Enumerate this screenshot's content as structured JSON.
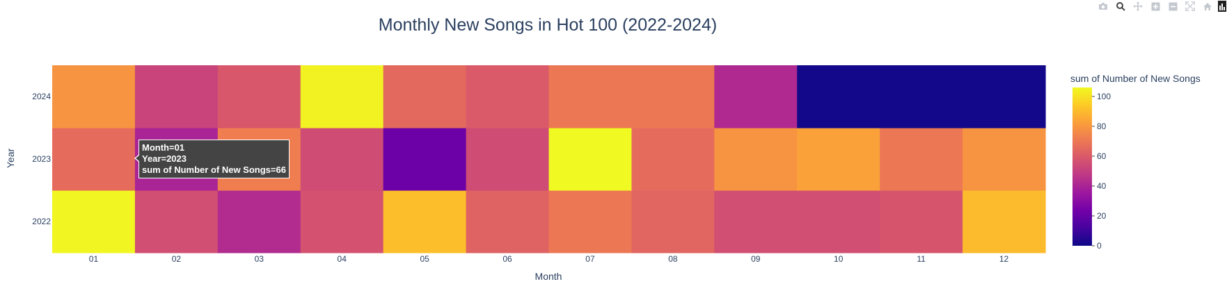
{
  "modebar": {
    "icons": [
      "camera-icon",
      "zoom-icon",
      "pan-icon",
      "zoom-in-icon",
      "zoom-out-icon",
      "autoscale-icon",
      "home-icon",
      "plotly-logo-icon"
    ]
  },
  "chart_data": {
    "type": "heatmap",
    "title": "Monthly New Songs in Hot 100 (2022-2024)",
    "xlabel": "Month",
    "ylabel": "Year",
    "x": [
      "01",
      "02",
      "03",
      "04",
      "05",
      "06",
      "07",
      "08",
      "09",
      "10",
      "11",
      "12"
    ],
    "y": [
      "2022",
      "2023",
      "2024"
    ],
    "z": [
      [
        105,
        56,
        43,
        57,
        91,
        63,
        70,
        64,
        56,
        56,
        58,
        90
      ],
      [
        66,
        40,
        72,
        55,
        22,
        55,
        106,
        66,
        79,
        83,
        70,
        79
      ],
      [
        79,
        52,
        59,
        104,
        65,
        60,
        70,
        70,
        42,
        1,
        1,
        1
      ]
    ],
    "colorbar": {
      "title": "sum of Number of New Songs",
      "range": [
        0,
        106
      ],
      "ticks": [
        "0",
        "20",
        "40",
        "60",
        "80",
        "100"
      ]
    },
    "colorscale": [
      "#0d0887",
      "#46039f",
      "#7201a8",
      "#9c179e",
      "#bd3786",
      "#d8576b",
      "#ed7953",
      "#fb9f3a",
      "#fdca26",
      "#f0f921"
    ],
    "tooltip": {
      "lines": [
        "Month=01",
        "Year=2023",
        "sum of Number of New Songs=66"
      ]
    }
  }
}
